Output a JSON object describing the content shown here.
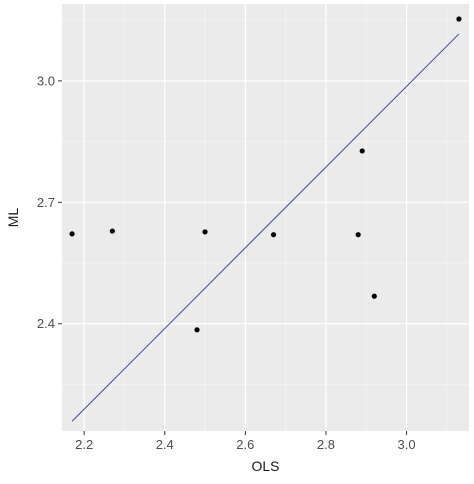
{
  "chart_data": {
    "type": "scatter",
    "title": "",
    "xlabel": "OLS",
    "ylabel": "ML",
    "xlim": [
      2.145,
      3.155
    ],
    "ylim": [
      2.135,
      3.19
    ],
    "x_ticks": [
      2.2,
      2.4,
      2.6,
      2.8,
      3.0
    ],
    "x_tick_labels": [
      "2.2",
      "2.4",
      "2.6",
      "2.8",
      "3.0"
    ],
    "y_ticks": [
      2.4,
      2.7,
      3.0
    ],
    "y_tick_labels": [
      "2.4",
      "2.7",
      "3.0"
    ],
    "grid": true,
    "background": "#ebebeb",
    "grid_major_color": "#ffffff",
    "point_color": "#000000",
    "line_color": "#3a4a9a",
    "points": [
      {
        "x": 2.17,
        "y": 2.622
      },
      {
        "x": 2.27,
        "y": 2.629
      },
      {
        "x": 2.48,
        "y": 2.385
      },
      {
        "x": 2.5,
        "y": 2.627
      },
      {
        "x": 2.67,
        "y": 2.62
      },
      {
        "x": 2.88,
        "y": 2.62
      },
      {
        "x": 2.89,
        "y": 2.827
      },
      {
        "x": 2.92,
        "y": 2.468
      },
      {
        "x": 3.13,
        "y": 3.153
      }
    ],
    "fit_line": {
      "x": [
        2.17,
        3.13
      ],
      "y": [
        2.159,
        3.116
      ]
    }
  }
}
